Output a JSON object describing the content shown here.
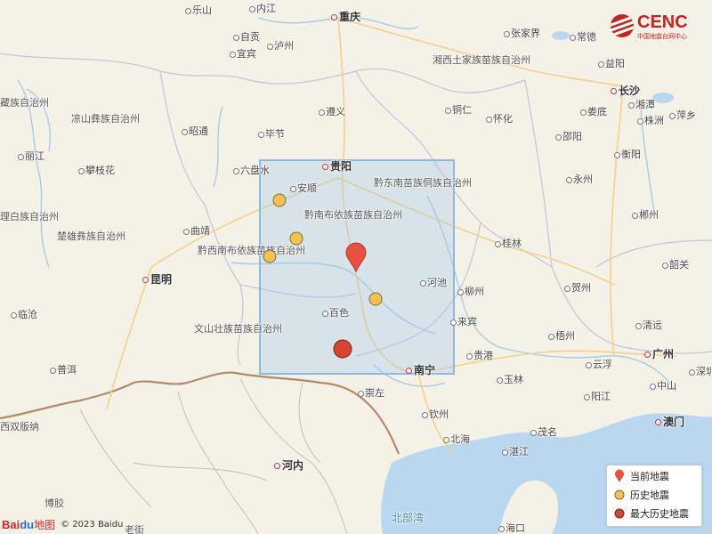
{
  "logo": {
    "name": "CENC",
    "subtitle": "中国地震台网中心"
  },
  "legend": {
    "current": "当前地震",
    "historical": "历史地震",
    "largest": "最大历史地震"
  },
  "attribution": {
    "brand_bai": "Bai",
    "brand_du": "du",
    "brand_map": "地图",
    "copyright": "© 2023 Baidu"
  },
  "colors": {
    "current": "#e8503f",
    "historical": "#f5c24c",
    "largest": "#d8432f",
    "box": "#8fb8e2"
  },
  "labels": {
    "leshan": "乐山",
    "neijiang": "内江",
    "chongqing": "重庆",
    "zigong": "自贡",
    "luzhou": "泸州",
    "yibin": "宜宾",
    "zhangjiajie": "张家界",
    "changde": "常德",
    "yiyang": "益阳",
    "xiangxi": "湘西土家族苗族自治州",
    "changsha": "长沙",
    "xiangtan": "湘潭",
    "zhuzhou": "株洲",
    "loudi": "娄底",
    "pingxiang": "萍乡",
    "tongren": "铜仁",
    "huaihua": "怀化",
    "zunyi": "遵义",
    "ganzi": "藏族自治州",
    "liangshan": "凉山彝族自治州",
    "zhaotong": "昭通",
    "bijie": "毕节",
    "shaoyang": "邵阳",
    "hengyang": "衡阳",
    "lijiang": "丽江",
    "panzhihua": "攀枝花",
    "liupanshui": "六盘水",
    "guiyang": "贵阳",
    "qiandongnan": "黔东南苗族侗族自治州",
    "anshun": "安顺",
    "yongzhou": "永州",
    "chenzhou": "郴州",
    "dali": "理白族自治州",
    "chuxiong": "楚雄彝族自治州",
    "qujing": "曲靖",
    "qiannan": "黔南布依族苗族自治州",
    "guilin": "桂林",
    "qianxinan": "黔西南布依族苗族自治州",
    "shaoguan": "韶关",
    "hezhou": "贺州",
    "kunming": "昆明",
    "hechi": "河池",
    "liuzhou": "柳州",
    "lincang": "临沧",
    "baise": "百色",
    "laibin": "来宾",
    "qingyuan": "清远",
    "wuzhou": "梧州",
    "wenshan": "文山壮族苗族自治州",
    "guangzhou": "广州",
    "guigang": "贵港",
    "puer": "普洱",
    "yunfu": "云浮",
    "nanning": "南宁",
    "yulin": "玉林",
    "zhongshan": "中山",
    "chongzuo": "崇左",
    "shenzhen": "深圳",
    "yangjiang": "阳江",
    "qinzhou": "钦州",
    "macau": "澳门",
    "xishuangbanna": "西双版纳",
    "beihai": "北海",
    "maoming": "茂名",
    "zhanjiang": "湛江",
    "hanoi": "河内",
    "bokeo": "博胶",
    "gulf": "北部湾",
    "haikou": "海口",
    "laojie": "老街"
  }
}
